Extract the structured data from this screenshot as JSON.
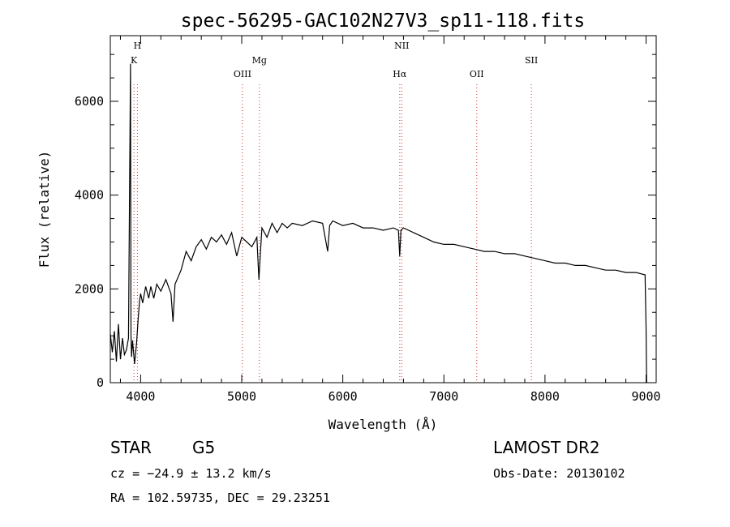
{
  "chart_data": {
    "type": "line",
    "title": "spec-56295-GAC102N27V3_sp11-118.fits",
    "xlabel": "Wavelength (Å)",
    "ylabel": "Flux (relative)",
    "xlim": [
      3700,
      9100
    ],
    "ylim": [
      0,
      7400
    ],
    "xticks": [
      4000,
      5000,
      6000,
      7000,
      8000,
      9000
    ],
    "yticks": [
      0,
      2000,
      4000,
      6000
    ],
    "grid": false,
    "spectral_lines": [
      {
        "name": "H",
        "wavelength": 3968
      },
      {
        "name": "K",
        "wavelength": 3934
      },
      {
        "name": "OIII",
        "wavelength": 5007
      },
      {
        "name": "Mg",
        "wavelength": 5175
      },
      {
        "name": "NII",
        "wavelength": 6583
      },
      {
        "name": "Hα",
        "wavelength": 6563
      },
      {
        "name": "OII",
        "wavelength": 7325
      },
      {
        "name": "SII",
        "wavelength": 7865
      }
    ],
    "series": [
      {
        "color": "#000000",
        "x": [
          3700,
          3720,
          3740,
          3760,
          3780,
          3800,
          3820,
          3840,
          3860,
          3880,
          3900,
          3905,
          3910,
          3920,
          3940,
          3960,
          3975,
          3990,
          4000,
          4020,
          4050,
          4080,
          4100,
          4130,
          4160,
          4200,
          4250,
          4300,
          4320,
          4340,
          4360,
          4400,
          4450,
          4500,
          4550,
          4600,
          4650,
          4700,
          4750,
          4800,
          4850,
          4900,
          4950,
          5000,
          5050,
          5100,
          5150,
          5170,
          5180,
          5200,
          5250,
          5300,
          5350,
          5400,
          5450,
          5500,
          5600,
          5700,
          5800,
          5850,
          5870,
          5900,
          6000,
          6100,
          6200,
          6300,
          6400,
          6500,
          6550,
          6563,
          6575,
          6600,
          6700,
          6800,
          6900,
          7000,
          7100,
          7200,
          7300,
          7400,
          7500,
          7600,
          7700,
          7800,
          7900,
          8000,
          8100,
          8200,
          8300,
          8400,
          8500,
          8600,
          8700,
          8800,
          8900,
          8990,
          9000,
          9005
        ],
        "y": [
          1050,
          650,
          1100,
          450,
          1250,
          500,
          950,
          600,
          700,
          950,
          6800,
          1000,
          550,
          900,
          400,
          850,
          1350,
          1750,
          1900,
          1700,
          2050,
          1800,
          2050,
          1800,
          2100,
          1950,
          2200,
          1900,
          1300,
          2100,
          2200,
          2400,
          2800,
          2600,
          2900,
          3050,
          2850,
          3100,
          3000,
          3150,
          2950,
          3200,
          2700,
          3100,
          3000,
          2900,
          3100,
          2200,
          2600,
          3300,
          3100,
          3400,
          3200,
          3400,
          3300,
          3400,
          3350,
          3450,
          3400,
          2800,
          3350,
          3450,
          3350,
          3400,
          3300,
          3300,
          3250,
          3300,
          3250,
          2700,
          3250,
          3300,
          3200,
          3100,
          3000,
          2950,
          2950,
          2900,
          2850,
          2800,
          2800,
          2750,
          2750,
          2700,
          2650,
          2600,
          2550,
          2550,
          2500,
          2500,
          2450,
          2400,
          2400,
          2350,
          2350,
          2300,
          1200,
          0
        ]
      }
    ]
  },
  "info": {
    "object_type": "STAR",
    "subclass": "G5",
    "survey": "LAMOST DR2",
    "redshift": "cz = −24.9 ± 13.2 km/s",
    "obs_date": "Obs-Date: 20130102",
    "coords": "RA = 102.59735, DEC =  29.23251"
  }
}
